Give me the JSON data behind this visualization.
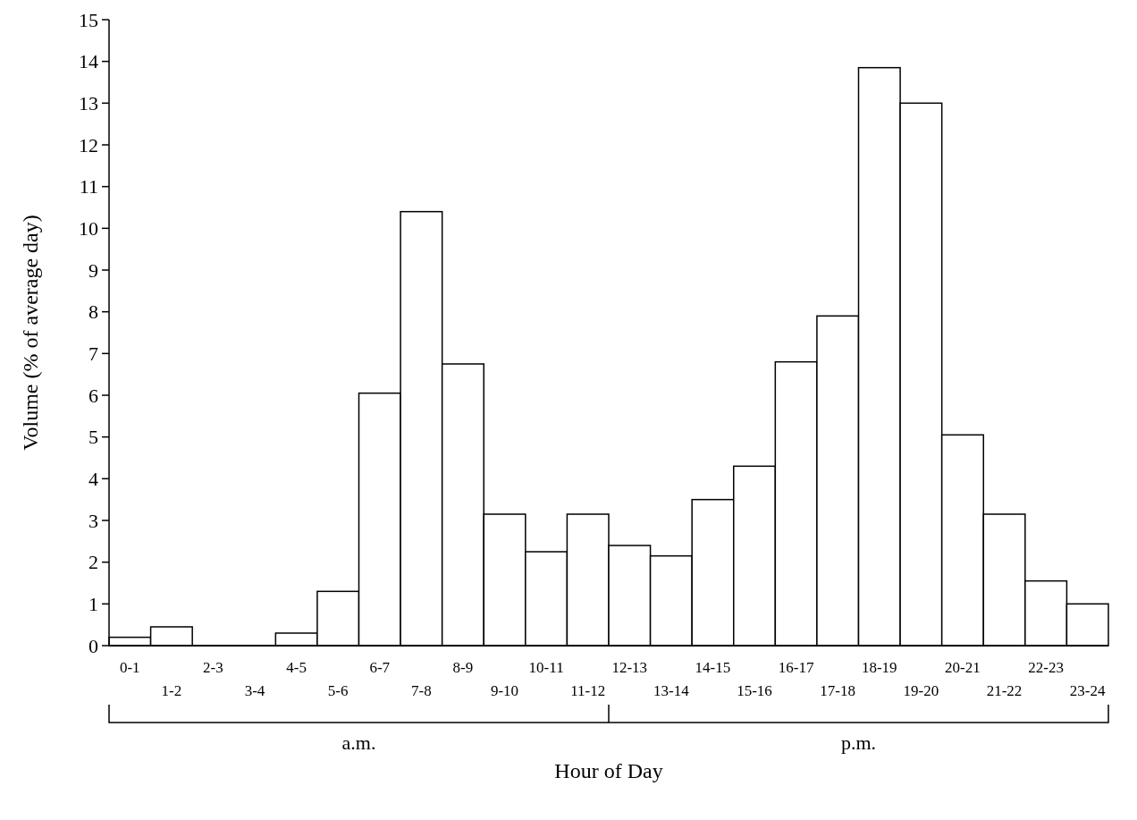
{
  "chart_data": {
    "type": "bar",
    "xlabel": "Hour of Day",
    "ylabel": "Volume (% of average day)",
    "categories": [
      "0-1",
      "1-2",
      "2-3",
      "3-4",
      "4-5",
      "5-6",
      "6-7",
      "7-8",
      "8-9",
      "9-10",
      "10-11",
      "11-12",
      "12-13",
      "13-14",
      "14-15",
      "15-16",
      "16-17",
      "17-18",
      "18-19",
      "19-20",
      "20-21",
      "21-22",
      "22-23",
      "23-24"
    ],
    "values": [
      0.2,
      0.45,
      0,
      0,
      0.3,
      1.3,
      6.05,
      10.4,
      6.75,
      3.15,
      2.25,
      3.15,
      2.4,
      2.15,
      3.5,
      4.3,
      6.8,
      7.9,
      13.85,
      13,
      5.05,
      3.15,
      1.55,
      1
    ],
    "color": "#ffffff",
    "ylim": [
      0,
      15
    ],
    "yticks": [
      0,
      1,
      2,
      3,
      4,
      5,
      6,
      7,
      8,
      9,
      10,
      11,
      12,
      13,
      14,
      15
    ],
    "annotations": [
      "a.m.",
      "p.m."
    ],
    "grid": false
  }
}
